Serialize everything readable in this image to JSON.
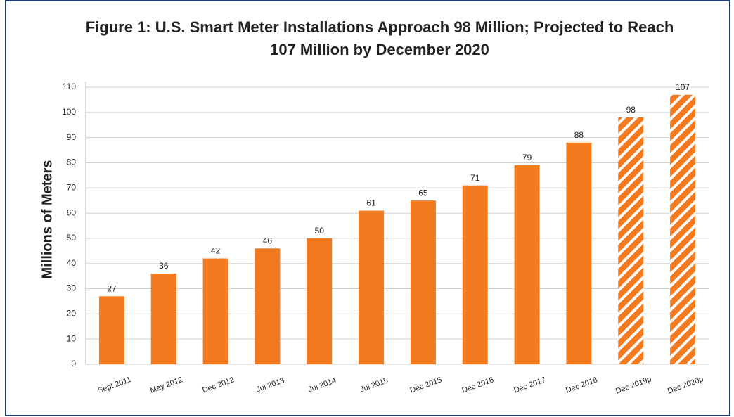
{
  "chart_data": {
    "type": "bar",
    "title": [
      "Figure 1: U.S. Smart Meter Installations Approach 98 Million; Projected to Reach",
      "107 Million by December 2020"
    ],
    "y_label": "Millions of Meters",
    "categories": [
      "Sept 2011",
      "May 2012",
      "Dec 2012",
      "Jul 2013",
      "Jul 2014",
      "Jul 2015",
      "Dec 2015",
      "Dec 2016",
      "Dec 2017",
      "Dec 2018",
      "Dec 2019p",
      "Dec 2020p"
    ],
    "values": [
      27,
      36,
      42,
      46,
      50,
      61,
      65,
      71,
      79,
      88,
      98,
      107
    ],
    "hatched": [
      false,
      false,
      false,
      false,
      false,
      false,
      false,
      false,
      false,
      false,
      true,
      true
    ],
    "color": "#f47a20",
    "ylim": [
      0,
      110
    ],
    "yticks": [
      0,
      10,
      20,
      30,
      40,
      50,
      60,
      70,
      80,
      90,
      100,
      110
    ],
    "grid": true
  }
}
